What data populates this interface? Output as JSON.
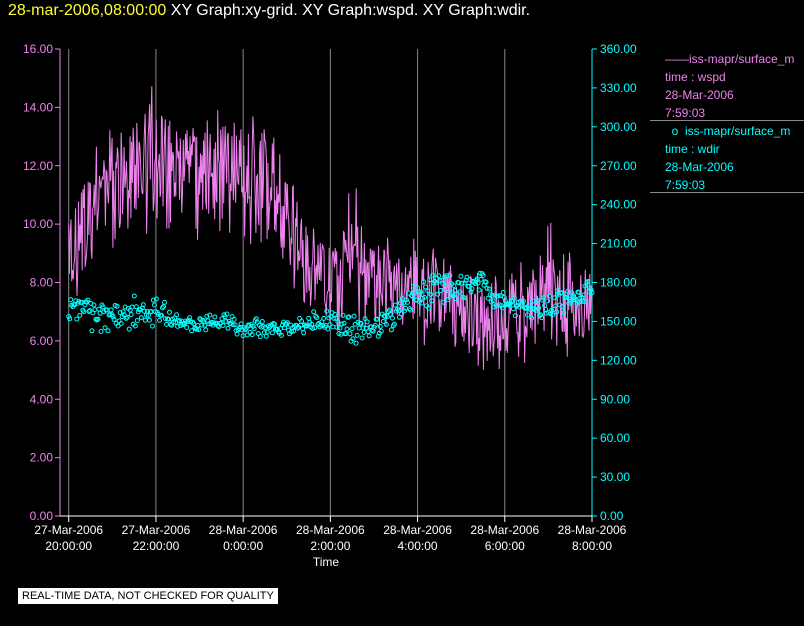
{
  "title": {
    "date": "28-mar-2006,08:00:00",
    "rest": "XY Graph:xy-grid.  XY Graph:wspd.  XY Graph:wdir."
  },
  "colors": {
    "wspd": "#ee82ee",
    "wdir": "#00ffff",
    "grid": "#888888",
    "axis_text": "#ffffff"
  },
  "legend": {
    "wspd": {
      "label": "iss-mapr/surface_m",
      "field": "time : wspd",
      "date": "28-Mar-2006",
      "time": "7:59:03"
    },
    "wdir": {
      "label": "iss-mapr/surface_m",
      "field": "time : wdir",
      "date": "28-Mar-2006",
      "time": "7:59:03"
    }
  },
  "note": "REAL-TIME DATA, NOT CHECKED FOR QUALITY",
  "chart_data": {
    "type": "line",
    "xlabel": "Time",
    "xlim": [
      -12.2,
      0.0
    ],
    "x_ticks": [
      {
        "value": -12,
        "date": "27-Mar-2006",
        "time": "20:00:00"
      },
      {
        "value": -10,
        "date": "27-Mar-2006",
        "time": "22:00:00"
      },
      {
        "value": -8,
        "date": "28-Mar-2006",
        "time": "0:00:00"
      },
      {
        "value": -6,
        "date": "28-Mar-2006",
        "time": "2:00:00"
      },
      {
        "value": -4,
        "date": "28-Mar-2006",
        "time": "4:00:00"
      },
      {
        "value": -2,
        "date": "28-Mar-2006",
        "time": "6:00:00"
      },
      {
        "value": 0,
        "date": "28-Mar-2006",
        "time": "8:00:00"
      }
    ],
    "y_left": {
      "lim": [
        0,
        16
      ],
      "ticks": [
        "0.00",
        "2.00",
        "4.00",
        "6.00",
        "8.00",
        "10.00",
        "12.00",
        "14.00",
        "16.00"
      ]
    },
    "y_right": {
      "lim": [
        0,
        360
      ],
      "ticks": [
        "0.00",
        "30.00",
        "60.00",
        "90.00",
        "120.00",
        "150.00",
        "180.00",
        "210.00",
        "240.00",
        "270.00",
        "300.00",
        "330.00",
        "360.00"
      ]
    },
    "grid": "vertical",
    "series": [
      {
        "name": "wspd",
        "style": "line",
        "axis": "left",
        "x": [
          -12.0,
          -11.5,
          -11.0,
          -10.5,
          -10.0,
          -9.5,
          -9.0,
          -8.5,
          -8.0,
          -7.5,
          -7.0,
          -6.5,
          -6.0,
          -5.5,
          -5.0,
          -4.5,
          -4.0,
          -3.5,
          -3.0,
          -2.5,
          -2.0,
          -1.5,
          -1.0,
          -0.5,
          0.0
        ],
        "values": [
          8.6,
          10.6,
          11.6,
          12.2,
          12.4,
          12.2,
          12.2,
          12.0,
          12.0,
          11.4,
          10.2,
          8.6,
          8.0,
          9.6,
          8.2,
          8.2,
          8.0,
          7.8,
          7.2,
          6.8,
          6.4,
          7.2,
          7.6,
          7.2,
          7.0
        ],
        "range_low": [
          6.2,
          7.8,
          8.4,
          9.0,
          9.6,
          9.2,
          9.0,
          9.6,
          8.8,
          8.6,
          7.6,
          6.4,
          6.0,
          6.6,
          5.8,
          6.0,
          5.4,
          5.2,
          5.0,
          3.6,
          5.2,
          5.0,
          5.6,
          5.2,
          6.0
        ],
        "range_high": [
          11.2,
          12.6,
          13.6,
          14.4,
          15.2,
          13.6,
          14.0,
          14.6,
          14.2,
          13.8,
          12.4,
          10.6,
          9.6,
          12.0,
          10.4,
          9.6,
          9.8,
          9.4,
          9.2,
          8.8,
          8.4,
          9.4,
          10.4,
          9.6,
          9.0
        ]
      },
      {
        "name": "wdir",
        "style": "markers",
        "axis": "right",
        "x": [
          -12.0,
          -11.5,
          -11.0,
          -10.5,
          -10.0,
          -9.5,
          -9.0,
          -8.5,
          -8.0,
          -7.5,
          -7.0,
          -6.5,
          -6.0,
          -5.5,
          -5.0,
          -4.5,
          -4.0,
          -3.5,
          -3.0,
          -2.5,
          -2.0,
          -1.5,
          -1.0,
          -0.5,
          0.0
        ],
        "values": [
          158,
          156,
          155,
          156,
          158,
          150,
          148,
          150,
          145,
          144,
          146,
          148,
          153,
          142,
          145,
          156,
          170,
          178,
          175,
          178,
          165,
          160,
          162,
          168,
          172
        ],
        "range_low": [
          146,
          136,
          138,
          140,
          146,
          142,
          140,
          143,
          136,
          137,
          139,
          141,
          143,
          128,
          135,
          142,
          158,
          162,
          160,
          160,
          152,
          150,
          148,
          156,
          160
        ],
        "range_high": [
          172,
          170,
          168,
          170,
          174,
          160,
          158,
          160,
          154,
          152,
          154,
          157,
          162,
          155,
          157,
          170,
          182,
          188,
          188,
          190,
          182,
          170,
          174,
          180,
          182
        ]
      }
    ]
  }
}
